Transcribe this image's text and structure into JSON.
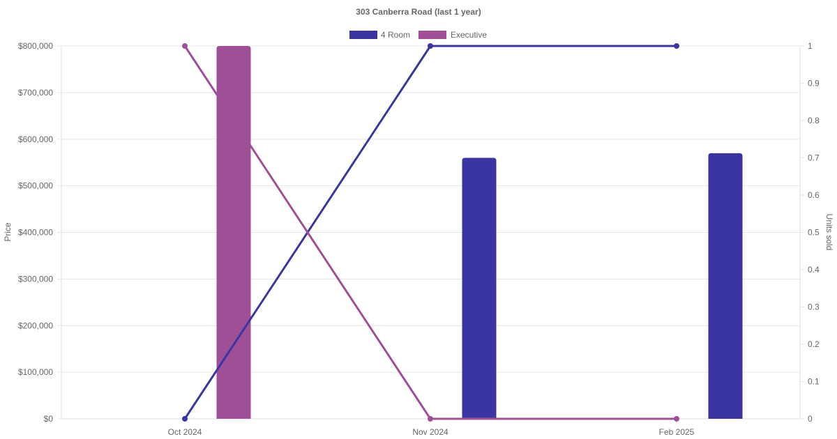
{
  "chart_data": {
    "type": "bar",
    "title": "303 Canberra Road (last 1 year)",
    "categories": [
      "Oct 2024",
      "Nov 2024",
      "Feb 2025"
    ],
    "series": [
      {
        "name": "4 Room",
        "color": "#3a35a0",
        "price_values": [
          null,
          560000,
          570000
        ],
        "units_sold": [
          0,
          1,
          1
        ]
      },
      {
        "name": "Executive",
        "color": "#9e4f96",
        "price_values": [
          800000,
          null,
          null
        ],
        "units_sold": [
          1,
          0,
          0
        ]
      }
    ],
    "y_left": {
      "label": "Price",
      "range": [
        0,
        800000
      ],
      "ticks": [
        "$0",
        "$100,000",
        "$200,000",
        "$300,000",
        "$400,000",
        "$500,000",
        "$600,000",
        "$700,000",
        "$800,000"
      ]
    },
    "y_right": {
      "label": "Units sold",
      "range": [
        0,
        1
      ],
      "ticks": [
        "0",
        "0.1",
        "0.2",
        "0.3",
        "0.4",
        "0.5",
        "0.6",
        "0.7",
        "0.8",
        "0.9",
        "1"
      ]
    },
    "grid": true,
    "legend_position": "top-center"
  }
}
